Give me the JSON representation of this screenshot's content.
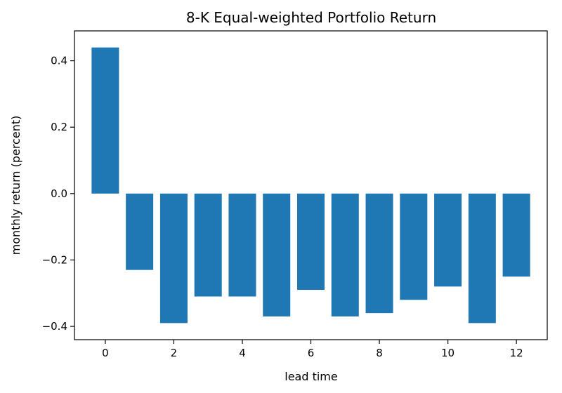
{
  "chart_data": {
    "type": "bar",
    "title": "8-K Equal-weighted Portfolio Return",
    "xlabel": "lead time",
    "ylabel": "monthly return (percent)",
    "x": [
      0,
      1,
      2,
      3,
      4,
      5,
      6,
      7,
      8,
      9,
      10,
      11,
      12
    ],
    "values": [
      0.44,
      -0.23,
      -0.39,
      -0.31,
      -0.31,
      -0.37,
      -0.29,
      -0.37,
      -0.36,
      -0.32,
      -0.28,
      -0.39,
      -0.25
    ],
    "xlim": [
      -0.9,
      12.9
    ],
    "ylim": [
      -0.44,
      0.49
    ],
    "xticks": [
      0,
      2,
      4,
      6,
      8,
      10,
      12
    ],
    "xtick_labels": [
      "0",
      "2",
      "4",
      "6",
      "8",
      "10",
      "12"
    ],
    "yticks": [
      0.4,
      0.2,
      0.0,
      -0.2,
      -0.4
    ],
    "ytick_labels": [
      "0.4",
      "0.2",
      "0.0",
      "−0.2",
      "−0.4"
    ],
    "bar_color": "#1f77b4",
    "grid": false,
    "legend": "none"
  }
}
